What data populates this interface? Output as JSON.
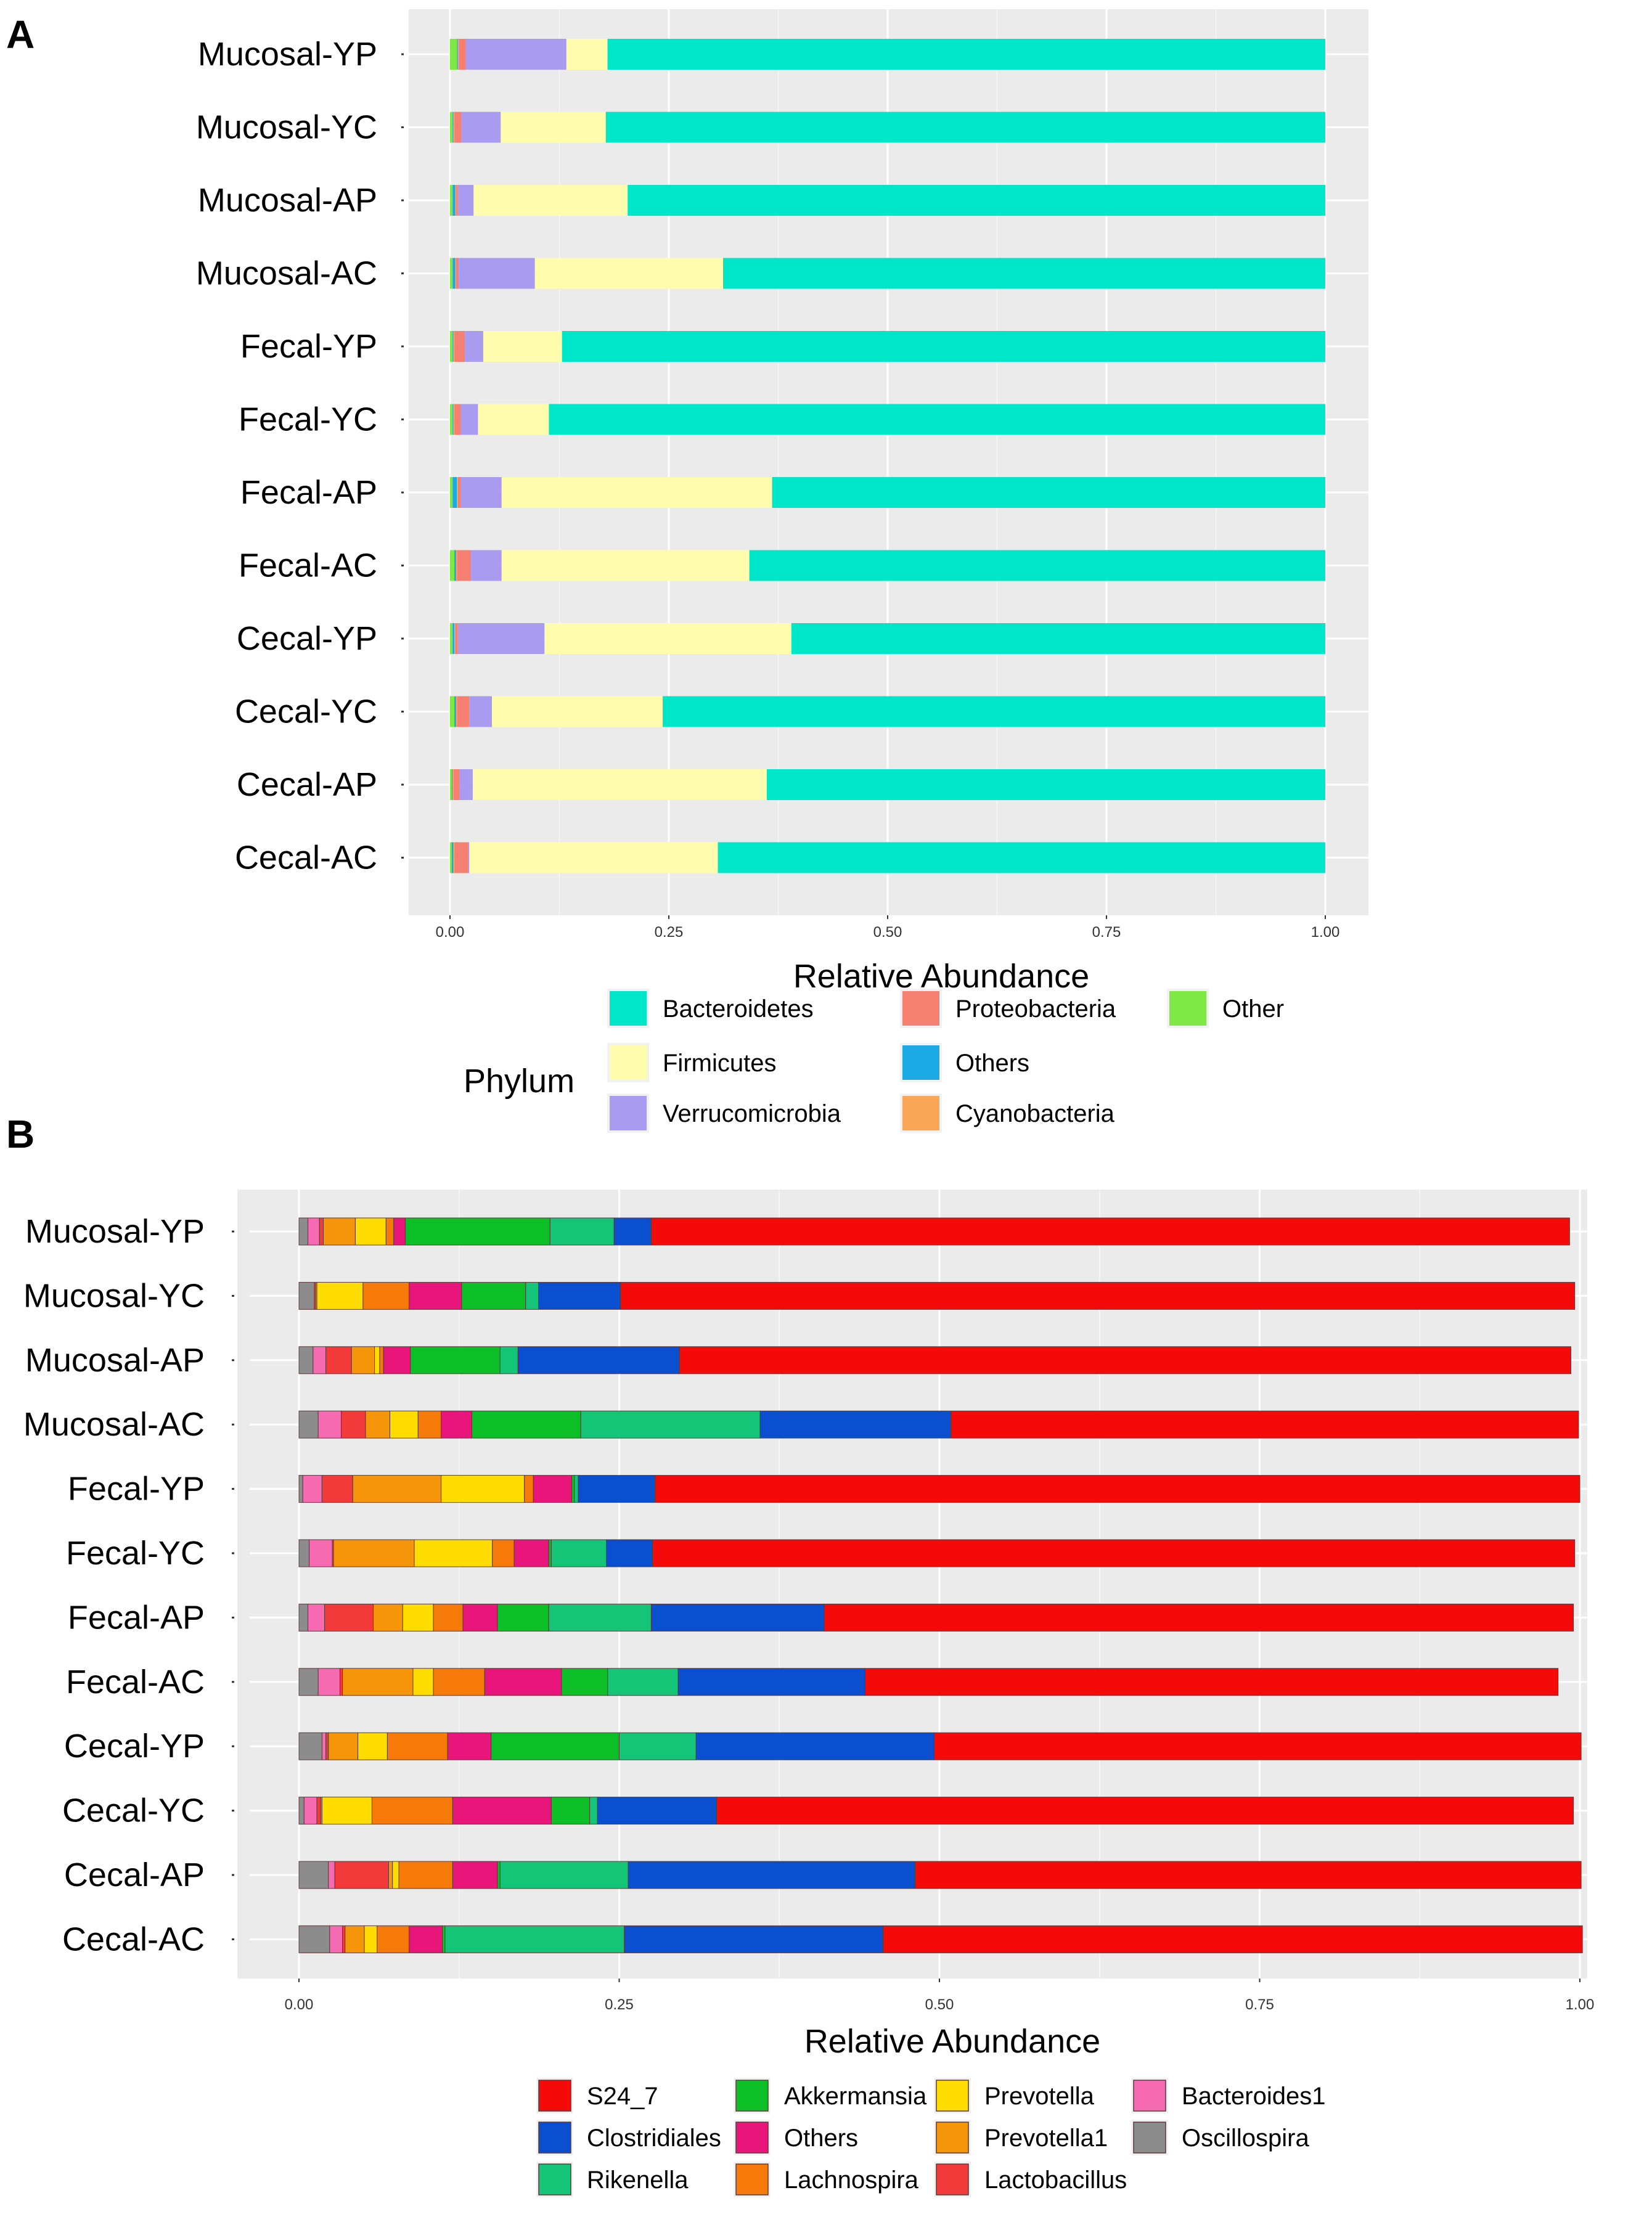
{
  "chart_data": [
    {
      "panel": "A",
      "type": "bar",
      "orientation": "horizontal",
      "stacked": true,
      "xlabel": "Relative Abundance",
      "xlim": [
        0,
        1
      ],
      "xticks": [
        "0.00",
        "0.25",
        "0.50",
        "0.75",
        "1.00"
      ],
      "xtick_values": [
        0,
        0.25,
        0.5,
        0.75,
        1.0
      ],
      "grid": true,
      "legend_title": "Phylum",
      "legend_position": "bottom",
      "categories": [
        "Mucosal-YP",
        "Mucosal-YC",
        "Mucosal-AP",
        "Mucosal-AC",
        "Fecal-YP",
        "Fecal-YC",
        "Fecal-AP",
        "Fecal-AC",
        "Cecal-YP",
        "Cecal-YC",
        "Cecal-AP",
        "Cecal-AC"
      ],
      "series": [
        {
          "name": "Other",
          "color": "#7FE845",
          "values": [
            0.008,
            0.003,
            0.003,
            0.003,
            0.003,
            0.003,
            0.003,
            0.005,
            0.003,
            0.005,
            0.002,
            0.002
          ]
        },
        {
          "name": "Others",
          "color": "#1CA9E6",
          "values": [
            0.001,
            0.001,
            0.003,
            0.003,
            0.001,
            0.001,
            0.005,
            0.002,
            0.002,
            0.002,
            0.001,
            0.002
          ]
        },
        {
          "name": "Cyanobacteria",
          "color": "#F9A659",
          "values": [
            0.001,
            0.001,
            0.001,
            0.001,
            0.001,
            0.001,
            0.001,
            0.001,
            0.001,
            0.001,
            0.001,
            0.001
          ]
        },
        {
          "name": "Proteobacteria",
          "color": "#F58072",
          "values": [
            0.008,
            0.008,
            0.002,
            0.003,
            0.012,
            0.007,
            0.003,
            0.016,
            0.003,
            0.014,
            0.007,
            0.016
          ]
        },
        {
          "name": "Verrucomicrobia",
          "color": "#A99BEF",
          "values": [
            0.115,
            0.045,
            0.018,
            0.087,
            0.021,
            0.02,
            0.047,
            0.035,
            0.099,
            0.026,
            0.015,
            0.001
          ]
        },
        {
          "name": "Firmicutes",
          "color": "#FFFDAD",
          "values": [
            0.047,
            0.12,
            0.176,
            0.215,
            0.09,
            0.081,
            0.309,
            0.283,
            0.282,
            0.195,
            0.336,
            0.284
          ]
        },
        {
          "name": "Bacteroidetes",
          "color": "#00E6C8",
          "values": [
            0.82,
            0.822,
            0.797,
            0.688,
            0.872,
            0.887,
            0.632,
            0.658,
            0.61,
            0.757,
            0.638,
            0.694
          ]
        }
      ],
      "legend_order": [
        "Bacteroidetes",
        "Firmicutes",
        "Verrucomicrobia",
        "Proteobacteria",
        "Others",
        "Cyanobacteria",
        "Other"
      ]
    },
    {
      "panel": "B",
      "type": "bar",
      "orientation": "horizontal",
      "stacked": true,
      "xlabel": "Relative Abundance",
      "xlim": [
        0,
        1
      ],
      "xticks": [
        "0.00",
        "0.25",
        "0.50",
        "0.75",
        "1.00"
      ],
      "xtick_values": [
        0,
        0.25,
        0.5,
        0.75,
        1.0
      ],
      "grid": true,
      "legend_position": "bottom",
      "categories": [
        "Mucosal-YP",
        "Mucosal-YC",
        "Mucosal-AP",
        "Mucosal-AC",
        "Fecal-YP",
        "Fecal-YC",
        "Fecal-AP",
        "Fecal-AC",
        "Cecal-YP",
        "Cecal-YC",
        "Cecal-AP",
        "Cecal-AC"
      ],
      "series": [
        {
          "name": "Oscillospira",
          "color": "#8C8C8C",
          "values": [
            0.007,
            0.012,
            0.011,
            0.015,
            0.003,
            0.008,
            0.007,
            0.015,
            0.018,
            0.004,
            0.023,
            0.024
          ]
        },
        {
          "name": "Bacteroides1",
          "color": "#F56AB0",
          "values": [
            0.009,
            0.0,
            0.01,
            0.018,
            0.015,
            0.018,
            0.013,
            0.017,
            0.003,
            0.01,
            0.005,
            0.01
          ]
        },
        {
          "name": "Lactobacillus",
          "color": "#F23A3A",
          "values": [
            0.003,
            0.001,
            0.02,
            0.019,
            0.024,
            0.001,
            0.038,
            0.002,
            0.002,
            0.003,
            0.042,
            0.002
          ]
        },
        {
          "name": "Prevotella1",
          "color": "#F5950A",
          "values": [
            0.025,
            0.001,
            0.018,
            0.019,
            0.069,
            0.063,
            0.023,
            0.055,
            0.023,
            0.001,
            0.003,
            0.015
          ]
        },
        {
          "name": "Prevotella",
          "color": "#FFDC00",
          "values": [
            0.024,
            0.036,
            0.004,
            0.022,
            0.065,
            0.061,
            0.024,
            0.016,
            0.023,
            0.039,
            0.005,
            0.01
          ]
        },
        {
          "name": "Lachnospira",
          "color": "#F57A0A",
          "values": [
            0.006,
            0.036,
            0.003,
            0.018,
            0.007,
            0.017,
            0.023,
            0.04,
            0.047,
            0.063,
            0.042,
            0.025
          ]
        },
        {
          "name": "Others",
          "color": "#E8157A",
          "values": [
            0.009,
            0.041,
            0.021,
            0.024,
            0.03,
            0.027,
            0.027,
            0.06,
            0.034,
            0.077,
            0.035,
            0.026
          ]
        },
        {
          "name": "Akkermansia",
          "color": "#0CBF27",
          "values": [
            0.113,
            0.05,
            0.07,
            0.085,
            0.002,
            0.002,
            0.04,
            0.036,
            0.1,
            0.03,
            0.002,
            0.002
          ]
        },
        {
          "name": "Rikenella",
          "color": "#14C477",
          "values": [
            0.05,
            0.01,
            0.014,
            0.14,
            0.003,
            0.043,
            0.08,
            0.055,
            0.06,
            0.006,
            0.1,
            0.14
          ]
        },
        {
          "name": "Clostridiales",
          "color": "#0A4FD0",
          "values": [
            0.029,
            0.064,
            0.126,
            0.149,
            0.06,
            0.036,
            0.135,
            0.146,
            0.186,
            0.093,
            0.224,
            0.202
          ]
        },
        {
          "name": "S24_7",
          "color": "#F50A0A",
          "values": [
            0.717,
            0.745,
            0.696,
            0.49,
            0.722,
            0.72,
            0.585,
            0.541,
            0.505,
            0.669,
            0.52,
            0.546
          ]
        }
      ],
      "legend_order": [
        "S24_7",
        "Clostridiales",
        "Rikenella",
        "Akkermansia",
        "Others",
        "Lachnospira",
        "Prevotella",
        "Prevotella1",
        "Lactobacillus",
        "Bacteroides1",
        "Oscillospira"
      ]
    }
  ]
}
